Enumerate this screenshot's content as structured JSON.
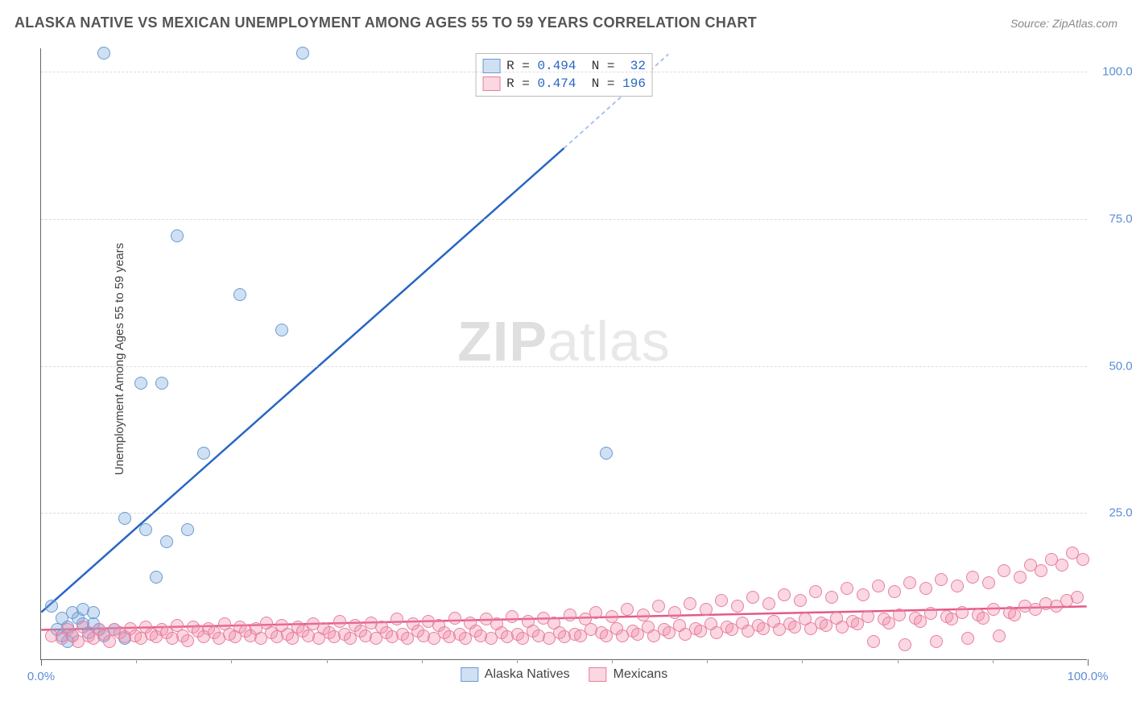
{
  "header": {
    "title": "ALASKA NATIVE VS MEXICAN UNEMPLOYMENT AMONG AGES 55 TO 59 YEARS CORRELATION CHART",
    "source_prefix": "Source: ",
    "source": "ZipAtlas.com"
  },
  "chart": {
    "type": "scatter",
    "y_axis_label": "Unemployment Among Ages 55 to 59 years",
    "xlim": [
      0,
      100
    ],
    "ylim": [
      0,
      104
    ],
    "x_ticks_major": [
      0,
      100
    ],
    "x_tick_labels": [
      "0.0%",
      "100.0%"
    ],
    "x_ticks_minor_count": 11,
    "y_ticks": [
      25,
      50,
      75,
      100
    ],
    "y_tick_labels": [
      "25.0%",
      "50.0%",
      "75.0%",
      "100.0%"
    ],
    "background_color": "#ffffff",
    "grid_color": "#dddddd",
    "axis_color": "#666666",
    "marker_radius": 8,
    "marker_border_width": 1.5,
    "series": [
      {
        "name": "Alaska Natives",
        "fill_color": "rgba(120,165,220,0.35)",
        "border_color": "#6a9bd4",
        "trend_color": "#2766c4",
        "trend_dash_color": "#a8c3e8",
        "trend": {
          "x1": 0,
          "y1": 8,
          "x2": 50,
          "y2": 87,
          "x2_dash": 60,
          "y2_dash": 103
        },
        "R": "0.494",
        "N": "32",
        "points": [
          [
            6,
            103
          ],
          [
            25,
            103
          ],
          [
            13,
            72
          ],
          [
            19,
            62
          ],
          [
            23,
            56
          ],
          [
            9.5,
            47
          ],
          [
            11.5,
            47
          ],
          [
            54,
            35
          ],
          [
            15.5,
            35
          ],
          [
            8,
            24
          ],
          [
            10,
            22
          ],
          [
            14,
            22
          ],
          [
            12,
            20
          ],
          [
            1,
            9
          ],
          [
            11,
            14
          ],
          [
            2,
            4
          ],
          [
            2.5,
            5.5
          ],
          [
            3,
            4
          ],
          [
            3.5,
            7
          ],
          [
            4,
            6
          ],
          [
            4.5,
            4.5
          ],
          [
            5,
            6
          ],
          [
            5.5,
            5
          ],
          [
            5,
            8
          ],
          [
            4,
            8.5
          ],
          [
            2,
            7
          ],
          [
            3,
            8
          ],
          [
            1.5,
            5
          ],
          [
            2.5,
            3
          ],
          [
            6,
            4
          ],
          [
            7,
            5
          ],
          [
            8,
            3.5
          ]
        ]
      },
      {
        "name": "Mexicans",
        "fill_color": "rgba(240,140,170,0.35)",
        "border_color": "#e87fa1",
        "trend_color": "#e45a88",
        "trend": {
          "x1": 0,
          "y1": 5,
          "x2": 100,
          "y2": 9
        },
        "R": "0.474",
        "N": "196",
        "points": [
          [
            1,
            4
          ],
          [
            2,
            3.5
          ],
          [
            2.5,
            5
          ],
          [
            3,
            4
          ],
          [
            3.5,
            3
          ],
          [
            4,
            5.5
          ],
          [
            4.5,
            4
          ],
          [
            5,
            3.5
          ],
          [
            5.5,
            5
          ],
          [
            6,
            4.2
          ],
          [
            6.5,
            3
          ],
          [
            7,
            5
          ],
          [
            7.5,
            4.5
          ],
          [
            8,
            3.8
          ],
          [
            8.5,
            5.2
          ],
          [
            9,
            4
          ],
          [
            9.5,
            3.5
          ],
          [
            10,
            5.5
          ],
          [
            10.5,
            4.2
          ],
          [
            11,
            3.8
          ],
          [
            11.5,
            5
          ],
          [
            12,
            4.5
          ],
          [
            12.5,
            3.5
          ],
          [
            13,
            5.8
          ],
          [
            13.5,
            4
          ],
          [
            14,
            3.2
          ],
          [
            14.5,
            5.5
          ],
          [
            15,
            4.8
          ],
          [
            15.5,
            3.8
          ],
          [
            16,
            5.2
          ],
          [
            16.5,
            4.5
          ],
          [
            17,
            3.5
          ],
          [
            17.5,
            6
          ],
          [
            18,
            4.2
          ],
          [
            18.5,
            3.8
          ],
          [
            19,
            5.5
          ],
          [
            19.5,
            4.8
          ],
          [
            20,
            4
          ],
          [
            20.5,
            5.2
          ],
          [
            21,
            3.5
          ],
          [
            21.5,
            6.2
          ],
          [
            22,
            4.5
          ],
          [
            22.5,
            3.8
          ],
          [
            23,
            5.8
          ],
          [
            23.5,
            4.2
          ],
          [
            24,
            3.5
          ],
          [
            24.5,
            5.5
          ],
          [
            25,
            4.8
          ],
          [
            25.5,
            4
          ],
          [
            26,
            6
          ],
          [
            26.5,
            3.5
          ],
          [
            27,
            5.2
          ],
          [
            27.5,
            4.5
          ],
          [
            28,
            3.8
          ],
          [
            28.5,
            6.5
          ],
          [
            29,
            4.2
          ],
          [
            29.5,
            3.5
          ],
          [
            30,
            5.8
          ],
          [
            30.5,
            4.8
          ],
          [
            31,
            4
          ],
          [
            31.5,
            6.2
          ],
          [
            32,
            3.5
          ],
          [
            32.5,
            5.5
          ],
          [
            33,
            4.5
          ],
          [
            33.5,
            3.8
          ],
          [
            34,
            6.8
          ],
          [
            34.5,
            4.2
          ],
          [
            35,
            3.5
          ],
          [
            35.5,
            6
          ],
          [
            36,
            4.8
          ],
          [
            36.5,
            4
          ],
          [
            37,
            6.5
          ],
          [
            37.5,
            3.5
          ],
          [
            38,
            5.8
          ],
          [
            38.5,
            4.5
          ],
          [
            39,
            3.8
          ],
          [
            39.5,
            7
          ],
          [
            40,
            4.2
          ],
          [
            40.5,
            3.5
          ],
          [
            41,
            6.2
          ],
          [
            41.5,
            4.8
          ],
          [
            42,
            4
          ],
          [
            42.5,
            6.8
          ],
          [
            43,
            3.5
          ],
          [
            43.5,
            6
          ],
          [
            44,
            4.5
          ],
          [
            44.5,
            3.8
          ],
          [
            45,
            7.2
          ],
          [
            45.5,
            4.2
          ],
          [
            46,
            3.5
          ],
          [
            46.5,
            6.5
          ],
          [
            47,
            4.8
          ],
          [
            47.5,
            4
          ],
          [
            48,
            7
          ],
          [
            48.5,
            3.5
          ],
          [
            49,
            6.2
          ],
          [
            49.5,
            4.5
          ],
          [
            50,
            3.8
          ],
          [
            50.5,
            7.5
          ],
          [
            51,
            4.2
          ],
          [
            51.5,
            4
          ],
          [
            52,
            6.8
          ],
          [
            52.5,
            5
          ],
          [
            53,
            8
          ],
          [
            53.5,
            4.5
          ],
          [
            54,
            4
          ],
          [
            54.5,
            7.2
          ],
          [
            55,
            5.2
          ],
          [
            55.5,
            4
          ],
          [
            56,
            8.5
          ],
          [
            56.5,
            4.8
          ],
          [
            57,
            4.2
          ],
          [
            57.5,
            7.5
          ],
          [
            58,
            5.5
          ],
          [
            58.5,
            4
          ],
          [
            59,
            9
          ],
          [
            59.5,
            5
          ],
          [
            60,
            4.5
          ],
          [
            60.5,
            8
          ],
          [
            61,
            5.8
          ],
          [
            61.5,
            4.2
          ],
          [
            62,
            9.5
          ],
          [
            62.5,
            5.2
          ],
          [
            63,
            4.8
          ],
          [
            63.5,
            8.5
          ],
          [
            64,
            6
          ],
          [
            64.5,
            4.5
          ],
          [
            65,
            10
          ],
          [
            65.5,
            5.5
          ],
          [
            66,
            5
          ],
          [
            66.5,
            9
          ],
          [
            67,
            6.2
          ],
          [
            67.5,
            4.8
          ],
          [
            68,
            10.5
          ],
          [
            68.5,
            5.8
          ],
          [
            69,
            5.2
          ],
          [
            69.5,
            9.5
          ],
          [
            70,
            6.5
          ],
          [
            70.5,
            5
          ],
          [
            71,
            11
          ],
          [
            71.5,
            6
          ],
          [
            72,
            5.5
          ],
          [
            72.5,
            10
          ],
          [
            73,
            6.8
          ],
          [
            73.5,
            5.2
          ],
          [
            74,
            11.5
          ],
          [
            74.5,
            6.2
          ],
          [
            75,
            5.8
          ],
          [
            75.5,
            10.5
          ],
          [
            76,
            7
          ],
          [
            76.5,
            5.5
          ],
          [
            77,
            12
          ],
          [
            77.5,
            6.5
          ],
          [
            78,
            6
          ],
          [
            78.5,
            11
          ],
          [
            79,
            7.2
          ],
          [
            79.5,
            3
          ],
          [
            80,
            12.5
          ],
          [
            80.5,
            6.8
          ],
          [
            81,
            6.2
          ],
          [
            81.5,
            11.5
          ],
          [
            82,
            7.5
          ],
          [
            82.5,
            2.5
          ],
          [
            83,
            13
          ],
          [
            83.5,
            7
          ],
          [
            84,
            6.5
          ],
          [
            84.5,
            12
          ],
          [
            85,
            7.8
          ],
          [
            85.5,
            3
          ],
          [
            86,
            13.5
          ],
          [
            86.5,
            7.2
          ],
          [
            87,
            6.8
          ],
          [
            87.5,
            12.5
          ],
          [
            88,
            8
          ],
          [
            88.5,
            3.5
          ],
          [
            89,
            14
          ],
          [
            89.5,
            7.5
          ],
          [
            90,
            7
          ],
          [
            90.5,
            13
          ],
          [
            91,
            8.5
          ],
          [
            91.5,
            4
          ],
          [
            92,
            15
          ],
          [
            92.5,
            8
          ],
          [
            93,
            7.5
          ],
          [
            93.5,
            14
          ],
          [
            94,
            9
          ],
          [
            94.5,
            16
          ],
          [
            95,
            8.5
          ],
          [
            95.5,
            15
          ],
          [
            96,
            9.5
          ],
          [
            96.5,
            17
          ],
          [
            97,
            9
          ],
          [
            97.5,
            16
          ],
          [
            98,
            10
          ],
          [
            98.5,
            18
          ],
          [
            99,
            10.5
          ],
          [
            99.5,
            17
          ]
        ]
      }
    ],
    "legend_top": {
      "rows": [
        {
          "swatch": 0,
          "r_label": "R =",
          "n_label": "N ="
        },
        {
          "swatch": 1,
          "r_label": "R =",
          "n_label": "N ="
        }
      ]
    },
    "legend_bottom": [
      "Alaska Natives",
      "Mexicans"
    ],
    "watermark": {
      "zip": "ZIP",
      "rest": "atlas"
    }
  }
}
